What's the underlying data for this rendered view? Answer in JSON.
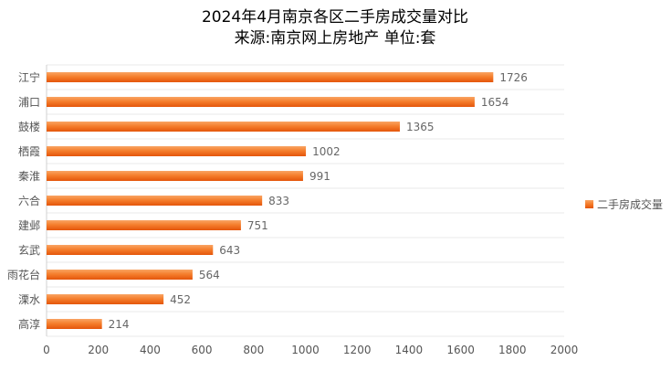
{
  "chart_data": {
    "type": "bar",
    "orientation": "horizontal",
    "title": "2024年4月南京各区二手房成交量对比",
    "subtitle": "来源:南京网上房地产 单位:套",
    "categories": [
      "江宁",
      "浦口",
      "鼓楼",
      "栖霞",
      "秦淮",
      "六合",
      "建邺",
      "玄武",
      "雨花台",
      "溧水",
      "高淳"
    ],
    "series": [
      {
        "name": "二手房成交量",
        "values": [
          1726,
          1654,
          1365,
          1002,
          991,
          833,
          751,
          643,
          564,
          452,
          214
        ]
      }
    ],
    "xlim": [
      0,
      2000
    ],
    "x_ticks": [
      0,
      200,
      400,
      600,
      800,
      1000,
      1200,
      1400,
      1600,
      1800,
      2000
    ],
    "grid": true,
    "legend_position": "right",
    "data_labels": true,
    "colors": {
      "bar_top": "#f79a55",
      "bar_bottom": "#e8590c",
      "grid": "#e6e6e6",
      "axis_text": "#555555",
      "label_text": "#666666",
      "title_text": "#000000"
    }
  }
}
